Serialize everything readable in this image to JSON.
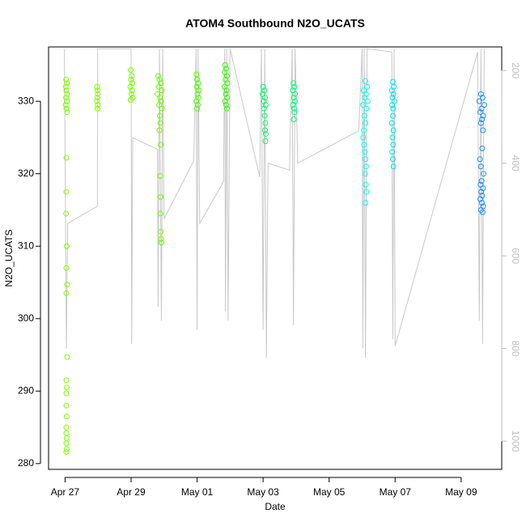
{
  "chart_data": {
    "type": "scatter",
    "title": "ATOM4 Southbound N2O_UCATS",
    "x_label": "Date",
    "y_label": "N2O_UCATS",
    "xlim": [
      -0.5,
      13.23
    ],
    "xticks": [
      {
        "value": 0,
        "label": "Apr 27"
      },
      {
        "value": 2,
        "label": "Apr 29"
      },
      {
        "value": 4,
        "label": "May 01"
      },
      {
        "value": 6,
        "label": "May 03"
      },
      {
        "value": 8,
        "label": "May 05"
      },
      {
        "value": 10,
        "label": "May 07"
      },
      {
        "value": 12,
        "label": "May 09"
      }
    ],
    "ylim": [
      279.2,
      337.5
    ],
    "yticks": [
      280,
      290,
      300,
      310,
      320,
      330
    ],
    "y2lim": [
      1061,
      149
    ],
    "y2ticks": [
      200,
      400,
      600,
      800,
      1000
    ],
    "y2_color": "#bebebe",
    "series": [
      {
        "type": "line",
        "axis": "y2",
        "color": "#c8c8c8",
        "x": [
          -0.02,
          0.04,
          0.08,
          0.98,
          0.99,
          2.0,
          2.02,
          2.05,
          2.8,
          2.82,
          2.86,
          2.92,
          2.96,
          3.0,
          3.9,
          3.97,
          4.0,
          4.03,
          4.08,
          4.8,
          4.84,
          4.86,
          4.9,
          4.94,
          5.0,
          5.9,
          5.95,
          6.0,
          6.05,
          6.1,
          6.15,
          6.8,
          6.88,
          6.92,
          6.97,
          7.05,
          8.9,
          9.0,
          9.02,
          9.06,
          9.1,
          9.15,
          9.9,
          9.93,
          9.97,
          10.0,
          12.5,
          12.55,
          12.6,
          12.65,
          12.7
        ],
        "values": [
          153,
          800,
          530,
          493,
          153,
          153,
          790,
          345,
          370,
          710,
          153,
          740,
          153,
          520,
          395,
          153,
          760,
          153,
          530,
          440,
          153,
          720,
          153,
          740,
          153,
          430,
          153,
          760,
          153,
          820,
          400,
          415,
          153,
          750,
          153,
          400,
          330,
          153,
          800,
          153,
          820,
          153,
          160,
          780,
          153,
          795,
          160,
          740,
          153,
          790,
          153
        ]
      },
      {
        "color": "#7fff00",
        "x": [
          0.03,
          0.05,
          0.02,
          0.04,
          0.06,
          0.03,
          0.05,
          0.02,
          0.04,
          0.06,
          0.04,
          0.04,
          0.03,
          0.05,
          0.04,
          0.06,
          0.04,
          0.06,
          0.04,
          0.05,
          0.04,
          0.04,
          0.05,
          0.04,
          0.04,
          0.05,
          0.04,
          0.05,
          0.04
        ],
        "values": [
          333,
          332.5,
          332,
          331.5,
          331,
          330.5,
          330,
          329.5,
          329,
          328.5,
          322.2,
          317.5,
          314.5,
          310,
          307,
          304.7,
          303.5,
          294.7,
          291.5,
          290.5,
          289.7,
          288,
          286.5,
          285,
          284.2,
          283.5,
          282.8,
          282,
          281.6
        ]
      },
      {
        "color": "#7fff00",
        "x": [
          0.97,
          0.98,
          0.99,
          0.98,
          0.97,
          0.99,
          0.98
        ],
        "values": [
          332,
          331.5,
          331,
          330.5,
          330,
          329.5,
          329
        ]
      },
      {
        "color": "#70ff00",
        "x": [
          1.99,
          2.02,
          2.0,
          2.04,
          1.98,
          2.03,
          2.01,
          2.05,
          1.99
        ],
        "values": [
          334.3,
          333.5,
          333,
          332.5,
          332,
          331.5,
          331,
          330.5,
          330.2
        ]
      },
      {
        "color": "#66ff00",
        "x": [
          2.82,
          2.86,
          2.9,
          2.84,
          2.93,
          2.8,
          2.88,
          2.91,
          2.85,
          2.94,
          2.87,
          2.89,
          2.86,
          2.9,
          2.88,
          2.9,
          2.89,
          2.9,
          2.91,
          2.92
        ],
        "values": [
          333.5,
          333,
          332.5,
          332,
          331.5,
          331,
          330.5,
          330,
          329.5,
          329,
          328,
          327,
          326,
          324,
          319.7,
          316.8,
          314.5,
          312,
          311,
          310.5
        ]
      },
      {
        "color": "#4dff00",
        "x": [
          3.98,
          4.0,
          4.03,
          3.99,
          4.05,
          4.01,
          4.04,
          3.98,
          4.02,
          4.0
        ],
        "values": [
          333.7,
          333,
          332.5,
          332,
          331.5,
          331,
          330.5,
          330,
          329.5,
          329
        ]
      },
      {
        "color": "#33ff00",
        "x": [
          4.85,
          4.88,
          4.84,
          4.9,
          4.86,
          4.92,
          4.83,
          4.89,
          4.87,
          4.91,
          4.85,
          4.88,
          4.9
        ],
        "values": [
          335,
          334.5,
          334,
          333.5,
          333,
          332.5,
          332,
          331.5,
          331,
          330.5,
          330,
          329.5,
          329
        ]
      },
      {
        "color": "#00ff66",
        "x": [
          6.0,
          6.04,
          5.98,
          6.06,
          6.02,
          6.08,
          6.03,
          6.05,
          6.07,
          6.06,
          6.08,
          6.07
        ],
        "values": [
          332,
          331.5,
          331,
          330.5,
          330,
          329.5,
          329,
          328,
          327,
          326,
          325.5,
          324.5
        ]
      },
      {
        "color": "#00ff80",
        "x": [
          6.92,
          6.95,
          6.9,
          6.97,
          6.93,
          6.96,
          6.91,
          6.94,
          6.95,
          6.93
        ],
        "values": [
          332.5,
          332,
          331.5,
          331,
          330.5,
          330,
          329.5,
          329,
          328.5,
          327.5
        ]
      },
      {
        "color": "#00ffff",
        "x": [
          9.1,
          9.15,
          9.05,
          9.12,
          9.08,
          9.17,
          9.03,
          9.13,
          9.07,
          9.1,
          9.05,
          9.03,
          9.06,
          9.08,
          9.1,
          9.12,
          9.09,
          9.11,
          9.13,
          9.1
        ],
        "values": [
          332.8,
          332,
          331.5,
          331,
          330.5,
          330,
          329.5,
          329,
          328,
          327,
          326,
          325,
          324,
          323,
          322,
          321,
          320,
          318.5,
          317.5,
          316
        ]
      },
      {
        "color": "#00e5ee",
        "x": [
          9.93,
          9.96,
          9.9,
          9.95,
          9.92,
          9.98,
          9.91,
          9.94,
          9.93,
          9.9,
          9.95,
          9.92,
          9.94,
          9.91,
          9.93,
          9.95
        ],
        "values": [
          332.7,
          332,
          331.5,
          331,
          330.5,
          330,
          329.5,
          329,
          328,
          327,
          326,
          325,
          324,
          323,
          322,
          321
        ]
      },
      {
        "color": "#1e90ff",
        "x": [
          12.6,
          12.65,
          12.55,
          12.7,
          12.62,
          12.58,
          12.67,
          12.63,
          12.6,
          12.66,
          12.64,
          12.57,
          12.6,
          12.68,
          12.62,
          12.59,
          12.66,
          12.61,
          12.64,
          12.58,
          12.63,
          12.67,
          12.6,
          12.65
        ],
        "values": [
          331,
          330.5,
          330,
          329.5,
          329,
          328.5,
          328,
          327.5,
          327,
          326,
          323.5,
          322,
          321,
          320,
          319,
          318.5,
          318,
          317.5,
          317,
          316.5,
          316,
          315.5,
          315,
          314.7
        ]
      }
    ]
  }
}
